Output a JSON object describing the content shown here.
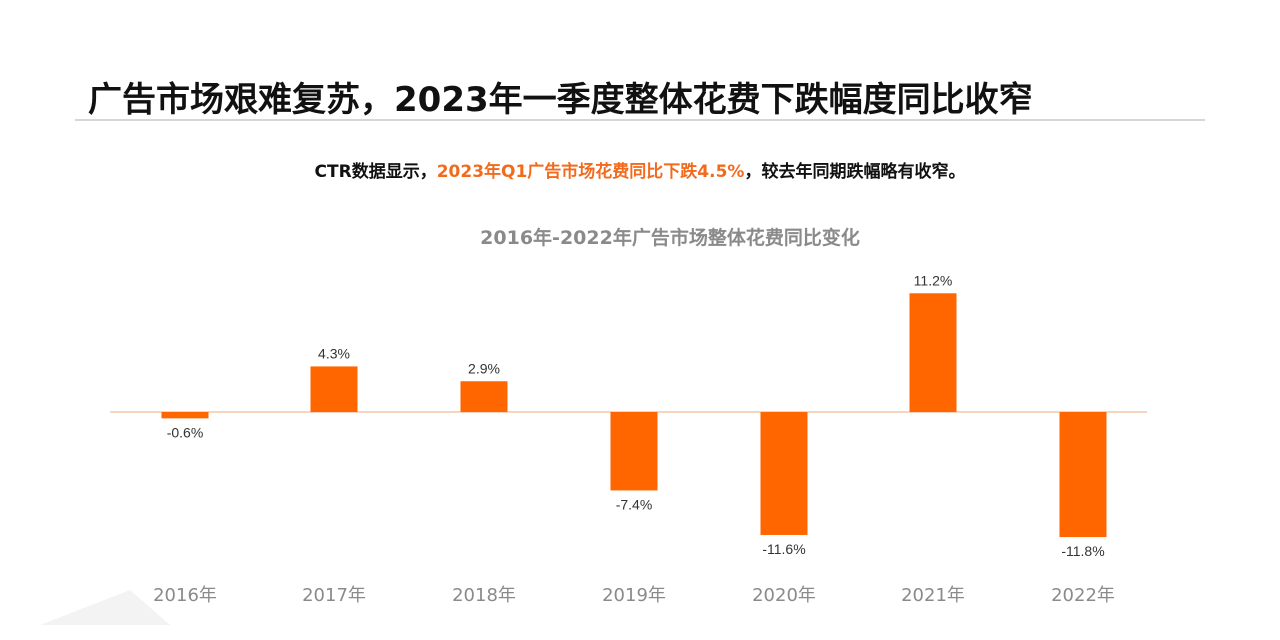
{
  "header": {
    "title": "广告市场艰难复苏，2023年一季度整体花费下跌幅度同比收窄"
  },
  "subtitle": {
    "prefix": "CTR数据显示，",
    "highlight": "2023年Q1广告市场花费同比下跌4.5%",
    "suffix": "，较去年同期跌幅略有收窄。"
  },
  "colors": {
    "bar": "#FF6600",
    "highlight": "#F26B1D",
    "axis": "#F5C9A8"
  },
  "chart_data": {
    "type": "bar",
    "title": "2016年-2022年广告市场整体花费同比变化",
    "categories": [
      "2016年",
      "2017年",
      "2018年",
      "2019年",
      "2020年",
      "2021年",
      "2022年"
    ],
    "values": [
      -0.6,
      4.3,
      2.9,
      -7.4,
      -11.6,
      11.2,
      -11.8
    ],
    "data_labels": [
      "-0.6%",
      "4.3%",
      "2.9%",
      "-7.4%",
      "-11.6%",
      "11.2%",
      "-11.8%"
    ],
    "unit": "%",
    "grid": false,
    "legend": "none"
  }
}
